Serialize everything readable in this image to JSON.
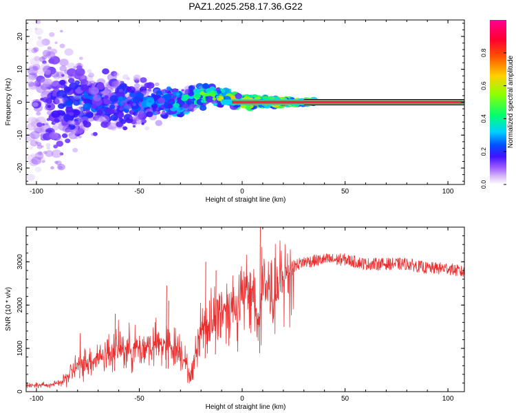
{
  "figure_title": "PAZ1.2025.258.17.36.G22",
  "colors": {
    "signal": "#e83030",
    "frame": "#000000",
    "colormap": [
      "#ffffff",
      "#c9a0f0",
      "#8040ff",
      "#3010ff",
      "#0060ff",
      "#00d0ff",
      "#00ff60",
      "#c0ff00",
      "#ffa000",
      "#ff2000",
      "#ff0080"
    ]
  },
  "chart_data": [
    {
      "id": "spectrogram",
      "type": "heatmap",
      "title": "PAZ1.2025.258.17.36.G22",
      "xlabel": "Height of straight line (km)",
      "ylabel": "Frequency (Hz)",
      "xlim": [
        -105,
        108
      ],
      "ylim": [
        -25,
        25
      ],
      "xticks": [
        -100,
        -50,
        0,
        50,
        100
      ],
      "yticks": [
        -20,
        -10,
        0,
        10,
        20
      ],
      "colorbar": {
        "label": "Normalized spectral amplitude",
        "range": [
          0,
          1
        ],
        "ticks": [
          0.0,
          0.2,
          0.4,
          0.6,
          0.8
        ]
      },
      "description_points": [
        {
          "x": -100,
          "spread_hz": 25,
          "peak_amp": 0.15
        },
        {
          "x": -75,
          "spread_hz": 8,
          "peak_amp": 0.3
        },
        {
          "x": -50,
          "spread_hz": 6,
          "peak_amp": 0.3
        },
        {
          "x": -25,
          "spread_hz": 3,
          "peak_amp": 0.55
        },
        {
          "x": 0,
          "spread_hz": 1.5,
          "peak_amp": 0.9
        },
        {
          "x": 30,
          "spread_hz": 0.5,
          "peak_amp": 1.0
        },
        {
          "x": 108,
          "spread_hz": 0.5,
          "peak_amp": 1.0
        }
      ]
    },
    {
      "id": "snr",
      "type": "line",
      "xlabel": "Height of straight line (km)",
      "ylabel": "SNR (10 * v/v)",
      "xlim": [
        -105,
        108
      ],
      "ylim": [
        0,
        3800
      ],
      "xticks": [
        -100,
        -50,
        0,
        50,
        100
      ],
      "yticks": [
        0,
        1000,
        2000,
        3000
      ],
      "series": [
        {
          "name": "SNR",
          "x": [
            -105,
            -95,
            -88,
            -80,
            -70,
            -60,
            -50,
            -40,
            -30,
            -25,
            -20,
            -15,
            -10,
            -5,
            0,
            5,
            8,
            10,
            15,
            20,
            25,
            30,
            40,
            50,
            60,
            70,
            80,
            90,
            100,
            108
          ],
          "y": [
            150,
            150,
            200,
            600,
            800,
            1000,
            1000,
            1100,
            1000,
            300,
            1500,
            1600,
            1900,
            2000,
            2100,
            2400,
            1500,
            2600,
            2100,
            2600,
            2900,
            3000,
            3050,
            3050,
            2950,
            2950,
            2950,
            2850,
            2850,
            2750
          ],
          "spike_peaks": [
            {
              "x": 8.5,
              "y": 3800
            },
            {
              "x": -18,
              "y": 3000
            },
            {
              "x": -13,
              "y": 2800
            },
            {
              "x": -36,
              "y": 2100
            },
            {
              "x": -37,
              "y": 2450
            },
            {
              "x": -62,
              "y": 1800
            },
            {
              "x": -79,
              "y": 1350
            }
          ]
        }
      ]
    }
  ]
}
